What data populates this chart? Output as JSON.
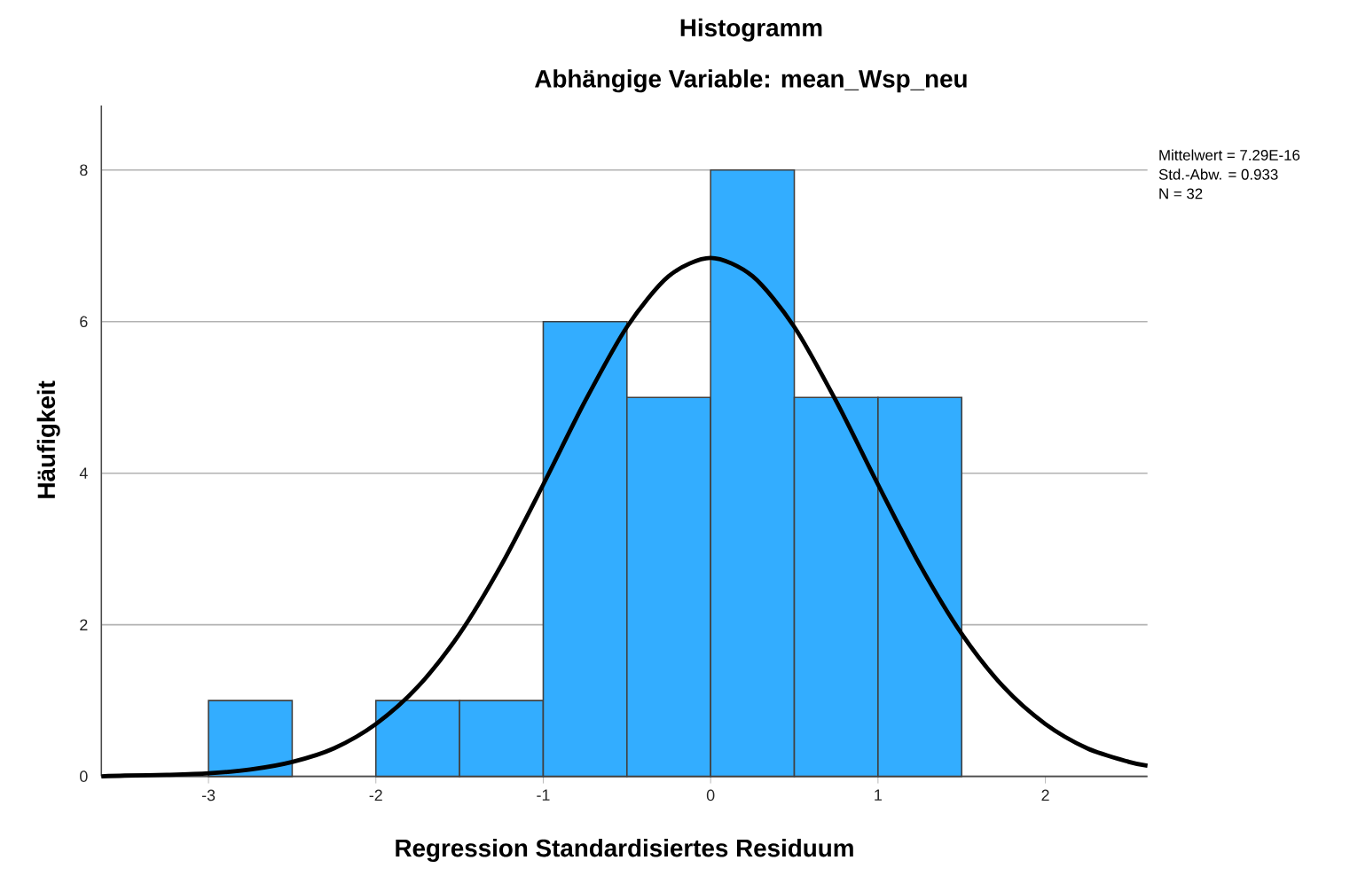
{
  "chart_data": {
    "type": "histogram",
    "title": "Histogramm",
    "subtitle": "Abhängige Variable: mean_Wsp_neu",
    "xlabel": "Regression Standardisiertes Residuum",
    "ylabel": "Häufigkeit",
    "bins": [
      -3,
      -2.5,
      -2,
      -1.5,
      -1,
      -0.5,
      0,
      0.5,
      1,
      1.5
    ],
    "values": [
      1,
      0,
      1,
      1,
      6,
      5,
      8,
      5,
      5
    ],
    "color": "#33adff",
    "series": [
      {
        "type": "line",
        "color": "#000000",
        "x": [
          -3.64,
          -3.5,
          -3.25,
          -3,
          -2.75,
          -2.5,
          -2.25,
          -2,
          -1.75,
          -1.5,
          -1.25,
          -1,
          -0.75,
          -0.5,
          -0.25,
          0,
          0.25,
          0.5,
          0.75,
          1,
          1.25,
          1.5,
          1.75,
          2,
          2.25,
          2.5,
          2.61
        ],
        "values": [
          0.0,
          0.01,
          0.02,
          0.04,
          0.09,
          0.19,
          0.37,
          0.69,
          1.18,
          1.88,
          2.79,
          3.85,
          4.95,
          5.93,
          6.6,
          6.84,
          6.6,
          5.93,
          4.95,
          3.85,
          2.79,
          1.88,
          1.18,
          0.69,
          0.37,
          0.19,
          0.14
        ]
      }
    ],
    "xlim": [
      -3.64,
      2.61
    ],
    "ylim": [
      0,
      8.85
    ],
    "xticks": [
      -3,
      -2,
      -1,
      0,
      1,
      2
    ],
    "yticks": [
      0,
      2,
      4,
      6,
      8
    ],
    "grid": "y",
    "annotations": [
      "Mittelwert = 7.29E-16",
      "Std.-Abw. = 0.933",
      "N = 32"
    ]
  }
}
